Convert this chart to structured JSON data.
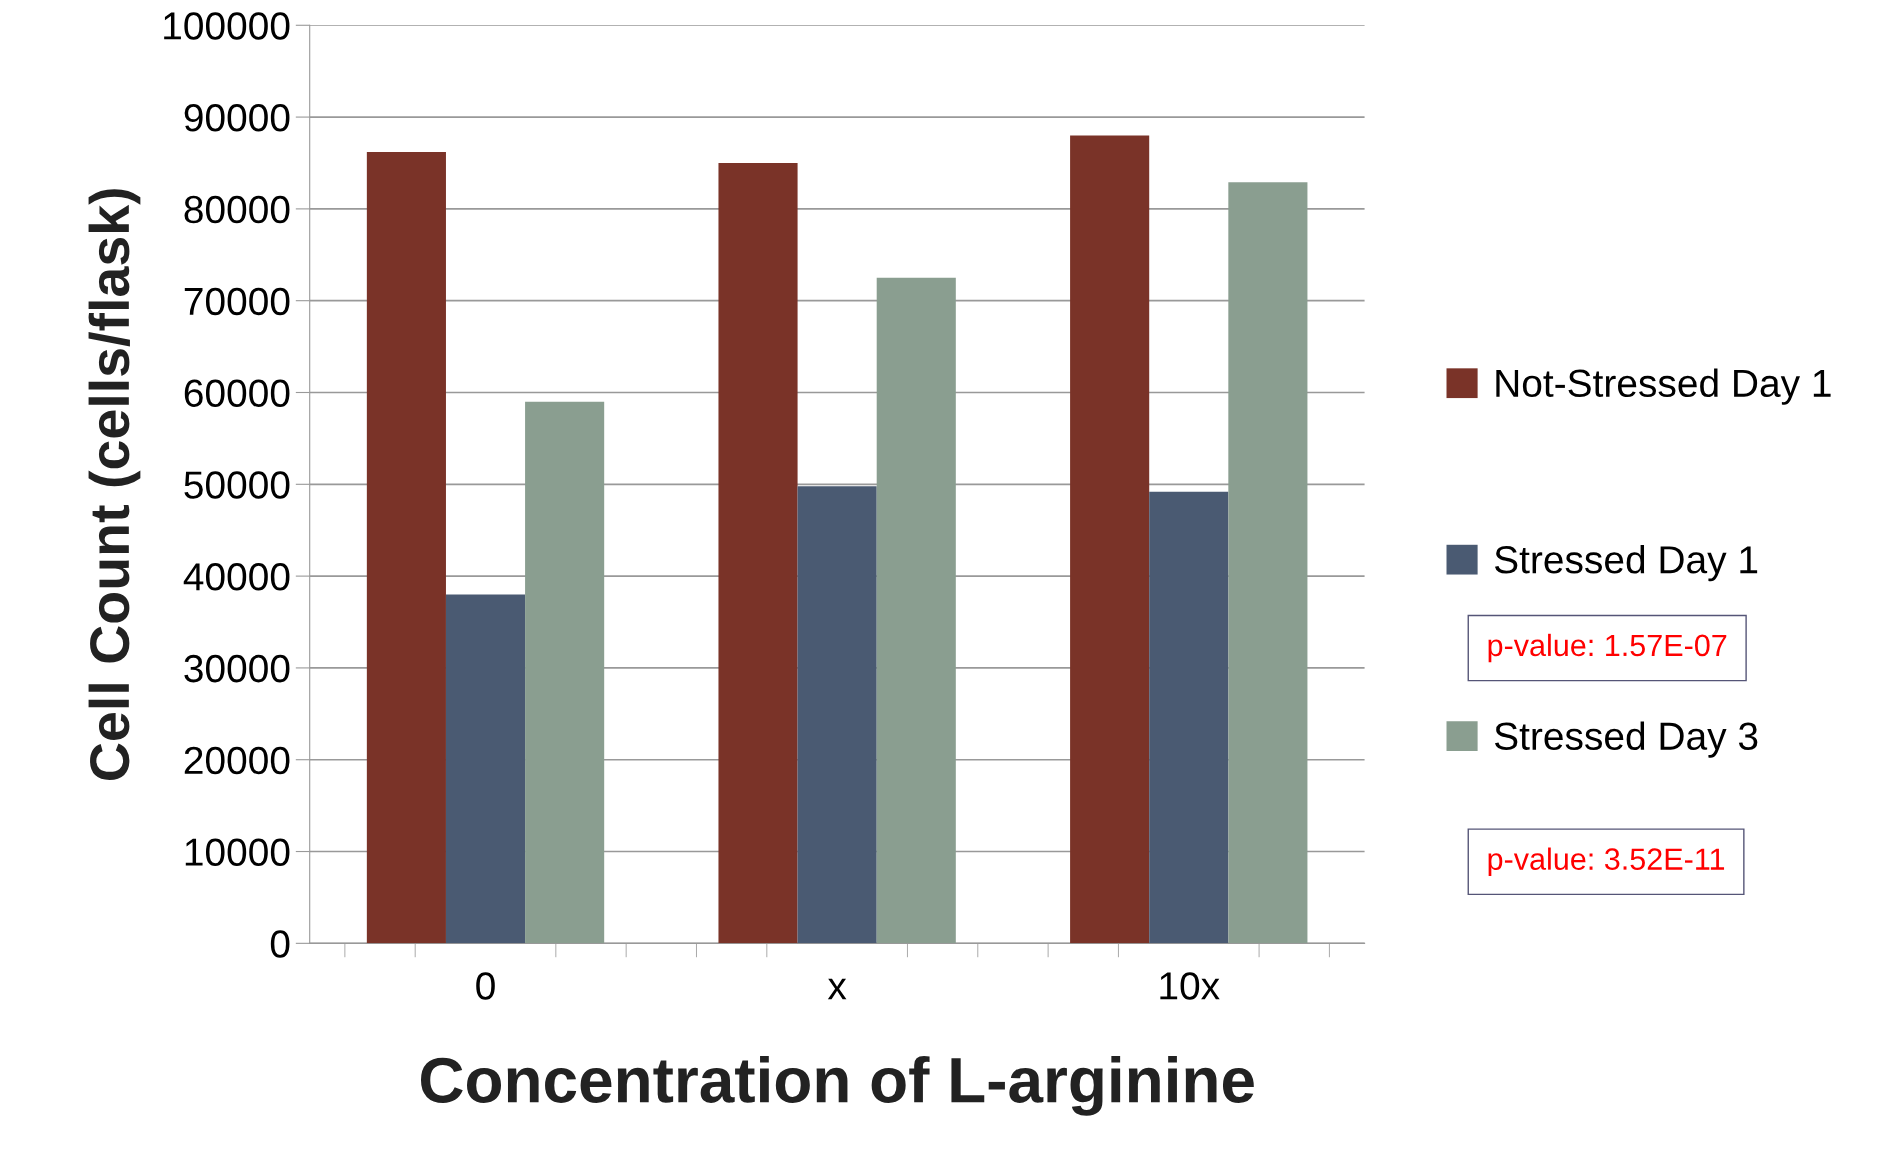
{
  "chart_data": {
    "type": "bar",
    "xlabel": "Concentration of L-arginine",
    "ylabel": "Cell Count (cells/flask)",
    "categories": [
      "0",
      "x",
      "10x"
    ],
    "series": [
      {
        "name": "Not-Stressed Day 1",
        "color": "#7a3328",
        "values": [
          86200,
          85000,
          88000
        ]
      },
      {
        "name": "Stressed Day 1",
        "color": "#4a5a72",
        "values": [
          38000,
          49800,
          49200
        ]
      },
      {
        "name": "Stressed Day 3",
        "color": "#8a9e90",
        "values": [
          59000,
          72500,
          82900
        ]
      }
    ],
    "ylim": [
      0,
      100000
    ],
    "yticks": [
      0,
      10000,
      20000,
      30000,
      40000,
      50000,
      60000,
      70000,
      80000,
      90000,
      100000
    ],
    "grid": "y",
    "legend": "right",
    "annotations": [
      "p-value: 1.57E-07",
      "p-value: 3.52E-11"
    ]
  }
}
